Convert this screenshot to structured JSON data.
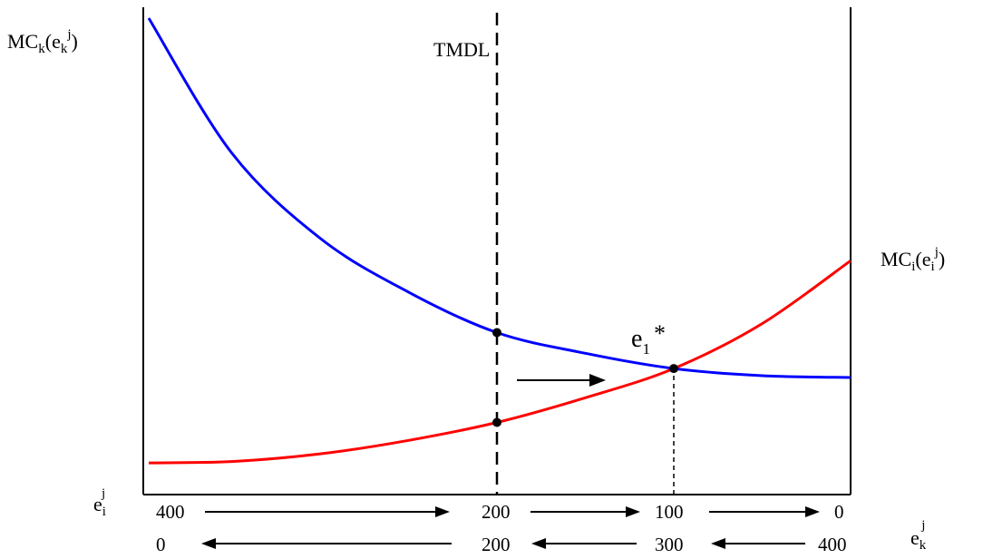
{
  "chart_data": {
    "type": "line",
    "title": "",
    "ylabel_left": "MC",
    "ylabel_left_sub": "k",
    "ylabel_left_arg": "(e",
    "ylabel_left_arg_sub": "k",
    "ylabel_left_arg_sup": "j",
    "ylabel_left_close": ")",
    "ylabel_right": "MC",
    "ylabel_right_sub": "i",
    "ylabel_right_arg": "(e",
    "ylabel_right_arg_sub": "i",
    "ylabel_right_arg_sup": "j",
    "ylabel_right_close": ")",
    "x_axis_top_label": "e",
    "x_axis_top_sub": "i",
    "x_axis_top_sup": "j",
    "x_axis_bottom_label": "e",
    "x_axis_bottom_sub": "k",
    "x_axis_bottom_sup": "j",
    "x_ticks_top": [
      "400",
      "200",
      "100",
      "0"
    ],
    "x_ticks_bottom": [
      "0",
      "200",
      "300",
      "400"
    ],
    "xlim": [
      400,
      0
    ],
    "tmdl_label": "TMDL",
    "tmdl_x": 200,
    "equilibrium_label": "e",
    "equilibrium_sub": "1",
    "equilibrium_sup": "*",
    "equilibrium_x": 100,
    "series": [
      {
        "name": "MCk(ekj)",
        "color": "#0000ff",
        "x": [
          400,
          350,
          300,
          250,
          200,
          150,
          100,
          50,
          0
        ],
        "y": [
          1.0,
          0.7,
          0.51,
          0.39,
          0.3,
          0.254,
          0.22,
          0.204,
          0.2
        ]
      },
      {
        "name": "MCi(eij)",
        "color": "#ff0000",
        "x": [
          400,
          350,
          300,
          250,
          200,
          150,
          100,
          50,
          0
        ],
        "y": [
          0.01,
          0.013,
          0.03,
          0.06,
          0.1,
          0.155,
          0.22,
          0.32,
          0.46
        ]
      }
    ],
    "marked_points": [
      {
        "x": 200,
        "y": 0.3
      },
      {
        "x": 200,
        "y": 0.1
      },
      {
        "x": 100,
        "y": 0.22
      }
    ]
  }
}
